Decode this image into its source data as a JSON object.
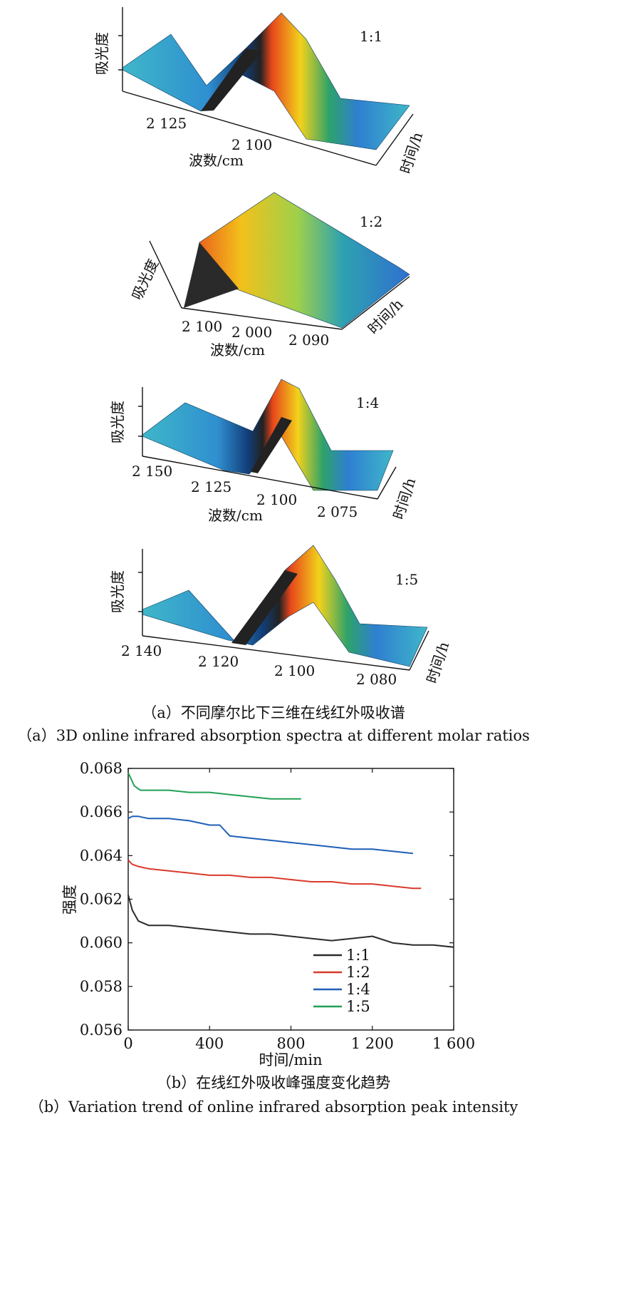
{
  "caption_a_cn": "（a）不同摩尔比下三维在线红外吸收谱",
  "caption_a_en": "（a）3D online infrared absorption spectra at different molar ratios",
  "caption_b_cn": "（b）在线红外吸收峰强度变化趋势",
  "caption_b_en": "（b）Variation trend of online infrared absorption peak intensity",
  "panels": [
    {
      "ratio": "1:1",
      "ylabel": "吸光度",
      "xlabel": "波数/cm",
      "tlabel": "时间/h",
      "ticks": [
        "2 125",
        "2 100"
      ]
    },
    {
      "ratio": "1:2",
      "ylabel": "吸光度",
      "xlabel": "波数/cm",
      "tlabel": "时间/h",
      "ticks": [
        "2 100",
        "2 000",
        "2 090"
      ]
    },
    {
      "ratio": "1:4",
      "ylabel": "吸光度",
      "xlabel": "波数/cm",
      "tlabel": "时间/h",
      "ticks": [
        "2 150",
        "2 125",
        "2 100",
        "2 075"
      ]
    },
    {
      "ratio": "1:5",
      "ylabel": "吸光度",
      "xlabel": "",
      "tlabel": "时间/h",
      "ticks": [
        "2 140",
        "2 120",
        "2 100",
        "2 080"
      ]
    }
  ],
  "chart_data": {
    "type": "line",
    "xlabel": "时间/min",
    "ylabel": "强度",
    "xlim": [
      0,
      1600
    ],
    "ylim": [
      0.056,
      0.068
    ],
    "x_ticks": [
      0,
      400,
      800,
      1200,
      1600
    ],
    "x_tick_labels": [
      "0",
      "400",
      "800",
      "1 200",
      "1 600"
    ],
    "y_ticks": [
      0.056,
      0.058,
      0.06,
      0.062,
      0.064,
      0.066,
      0.068
    ],
    "y_tick_labels": [
      "0.056",
      "0.058",
      "0.060",
      "0.062",
      "0.064",
      "0.066",
      "0.068"
    ],
    "legend_position": "bottom-right",
    "series": [
      {
        "name": "1:1",
        "color": "#2b2b2b",
        "x": [
          0,
          20,
          50,
          100,
          200,
          300,
          400,
          500,
          600,
          700,
          800,
          900,
          1000,
          1100,
          1200,
          1300,
          1400,
          1500,
          1600
        ],
        "y": [
          0.0622,
          0.0615,
          0.061,
          0.0608,
          0.0608,
          0.0607,
          0.0606,
          0.0605,
          0.0604,
          0.0604,
          0.0603,
          0.0602,
          0.0601,
          0.0602,
          0.0603,
          0.06,
          0.0599,
          0.0599,
          0.0598
        ]
      },
      {
        "name": "1:2",
        "color": "#d93a2b",
        "x": [
          0,
          20,
          50,
          100,
          200,
          300,
          400,
          500,
          600,
          700,
          800,
          900,
          1000,
          1100,
          1200,
          1300,
          1400,
          1440
        ],
        "y": [
          0.0638,
          0.0636,
          0.0635,
          0.0634,
          0.0633,
          0.0632,
          0.0631,
          0.0631,
          0.063,
          0.063,
          0.0629,
          0.0628,
          0.0628,
          0.0627,
          0.0627,
          0.0626,
          0.0625,
          0.0625
        ]
      },
      {
        "name": "1:4",
        "color": "#1f5fb8",
        "x": [
          0,
          20,
          50,
          100,
          200,
          300,
          400,
          450,
          500,
          600,
          700,
          800,
          900,
          1000,
          1100,
          1200,
          1300,
          1400
        ],
        "y": [
          0.0657,
          0.0658,
          0.0658,
          0.0657,
          0.0657,
          0.0656,
          0.0654,
          0.0654,
          0.0649,
          0.0648,
          0.0647,
          0.0646,
          0.0645,
          0.0644,
          0.0643,
          0.0643,
          0.0642,
          0.0641
        ]
      },
      {
        "name": "1:5",
        "color": "#22a055",
        "x": [
          0,
          10,
          30,
          60,
          100,
          200,
          300,
          400,
          500,
          600,
          700,
          800,
          850
        ],
        "y": [
          0.0678,
          0.0676,
          0.0672,
          0.067,
          0.067,
          0.067,
          0.0669,
          0.0669,
          0.0668,
          0.0667,
          0.0666,
          0.0666,
          0.0666
        ]
      }
    ]
  }
}
